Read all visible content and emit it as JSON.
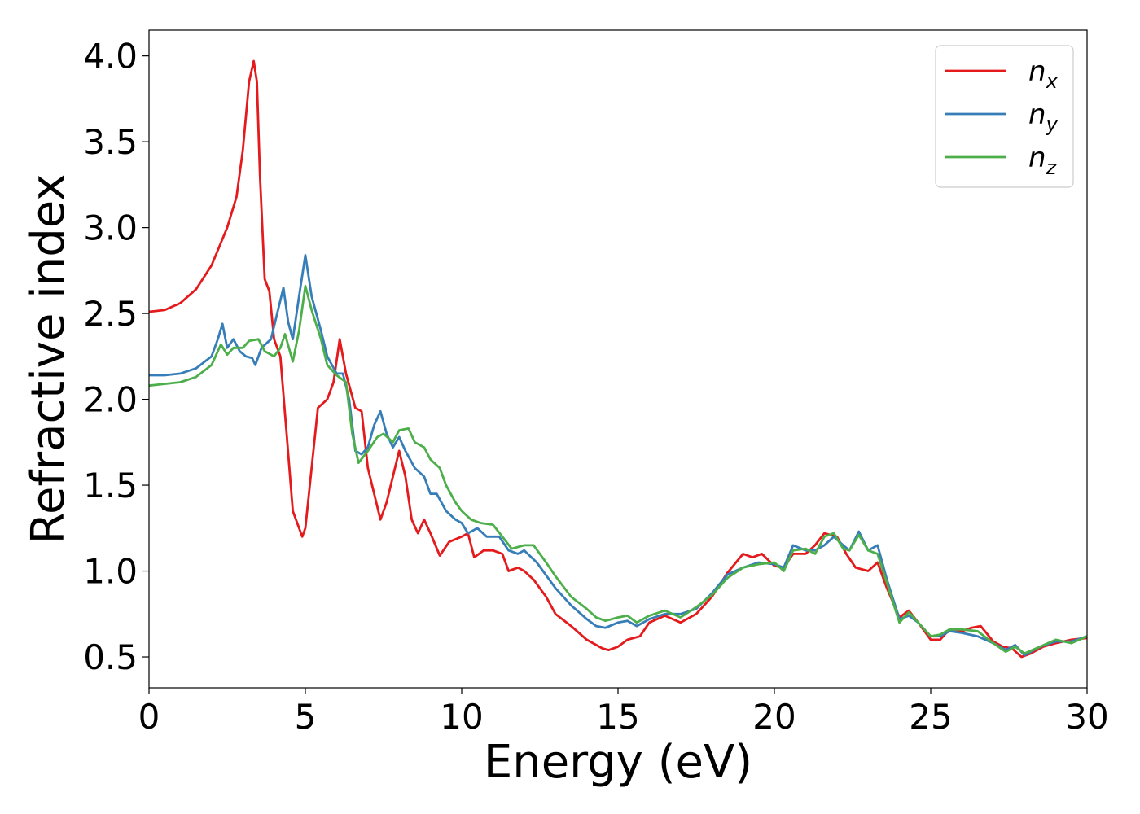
{
  "chart_data": {
    "type": "line",
    "title": "",
    "xlabel": "Energy (eV)",
    "ylabel": "Refractive index",
    "xlim": [
      0,
      30
    ],
    "ylim": [
      0.32,
      4.15
    ],
    "xticks": [
      0,
      5,
      10,
      15,
      20,
      25,
      30
    ],
    "xtick_labels": [
      "0",
      "5",
      "10",
      "15",
      "20",
      "25",
      "30"
    ],
    "yticks": [
      0.5,
      1.0,
      1.5,
      2.0,
      2.5,
      3.0,
      3.5,
      4.0
    ],
    "ytick_labels": [
      "0.5",
      "1.0",
      "1.5",
      "2.0",
      "2.5",
      "3.0",
      "3.5",
      "4.0"
    ],
    "grid": false,
    "legend_position": "top-right",
    "series": [
      {
        "name": "n",
        "subscript": "x",
        "color": "#e41a1c",
        "points": [
          [
            0,
            2.51
          ],
          [
            0.5,
            2.52
          ],
          [
            1.0,
            2.56
          ],
          [
            1.5,
            2.64
          ],
          [
            2.0,
            2.78
          ],
          [
            2.5,
            3.0
          ],
          [
            2.8,
            3.18
          ],
          [
            3.0,
            3.45
          ],
          [
            3.2,
            3.85
          ],
          [
            3.35,
            3.97
          ],
          [
            3.45,
            3.85
          ],
          [
            3.55,
            3.3
          ],
          [
            3.7,
            2.7
          ],
          [
            3.85,
            2.63
          ],
          [
            4.0,
            2.35
          ],
          [
            4.2,
            2.25
          ],
          [
            4.4,
            1.8
          ],
          [
            4.6,
            1.35
          ],
          [
            4.8,
            1.25
          ],
          [
            4.9,
            1.2
          ],
          [
            5.0,
            1.25
          ],
          [
            5.2,
            1.6
          ],
          [
            5.4,
            1.95
          ],
          [
            5.7,
            2.0
          ],
          [
            5.9,
            2.1
          ],
          [
            6.1,
            2.35
          ],
          [
            6.3,
            2.15
          ],
          [
            6.6,
            1.95
          ],
          [
            6.8,
            1.93
          ],
          [
            7.0,
            1.6
          ],
          [
            7.2,
            1.45
          ],
          [
            7.4,
            1.3
          ],
          [
            7.6,
            1.4
          ],
          [
            7.8,
            1.55
          ],
          [
            8.0,
            1.7
          ],
          [
            8.2,
            1.55
          ],
          [
            8.4,
            1.3
          ],
          [
            8.6,
            1.22
          ],
          [
            8.8,
            1.3
          ],
          [
            9.0,
            1.22
          ],
          [
            9.3,
            1.09
          ],
          [
            9.6,
            1.17
          ],
          [
            10.0,
            1.2
          ],
          [
            10.2,
            1.22
          ],
          [
            10.4,
            1.08
          ],
          [
            10.7,
            1.12
          ],
          [
            11.0,
            1.12
          ],
          [
            11.3,
            1.1
          ],
          [
            11.5,
            1.0
          ],
          [
            11.8,
            1.02
          ],
          [
            12.0,
            1.0
          ],
          [
            12.3,
            0.95
          ],
          [
            12.7,
            0.85
          ],
          [
            13.0,
            0.75
          ],
          [
            13.5,
            0.68
          ],
          [
            14.0,
            0.6
          ],
          [
            14.5,
            0.55
          ],
          [
            14.7,
            0.54
          ],
          [
            15.0,
            0.56
          ],
          [
            15.3,
            0.6
          ],
          [
            15.7,
            0.62
          ],
          [
            16.0,
            0.7
          ],
          [
            16.5,
            0.74
          ],
          [
            17.0,
            0.7
          ],
          [
            17.5,
            0.75
          ],
          [
            18.0,
            0.85
          ],
          [
            18.5,
            0.99
          ],
          [
            19.0,
            1.1
          ],
          [
            19.3,
            1.08
          ],
          [
            19.6,
            1.1
          ],
          [
            20.0,
            1.03
          ],
          [
            20.3,
            1.02
          ],
          [
            20.6,
            1.1
          ],
          [
            21.0,
            1.1
          ],
          [
            21.3,
            1.15
          ],
          [
            21.6,
            1.22
          ],
          [
            22.0,
            1.2
          ],
          [
            22.3,
            1.1
          ],
          [
            22.6,
            1.02
          ],
          [
            23.0,
            1.0
          ],
          [
            23.3,
            1.05
          ],
          [
            23.6,
            0.9
          ],
          [
            24.0,
            0.73
          ],
          [
            24.3,
            0.77
          ],
          [
            24.6,
            0.7
          ],
          [
            25.0,
            0.6
          ],
          [
            25.3,
            0.6
          ],
          [
            25.6,
            0.66
          ],
          [
            26.0,
            0.65
          ],
          [
            26.3,
            0.67
          ],
          [
            26.6,
            0.68
          ],
          [
            27.0,
            0.59
          ],
          [
            27.3,
            0.56
          ],
          [
            27.6,
            0.55
          ],
          [
            27.9,
            0.5
          ],
          [
            28.2,
            0.52
          ],
          [
            28.6,
            0.56
          ],
          [
            29.0,
            0.58
          ],
          [
            29.5,
            0.6
          ],
          [
            30.0,
            0.61
          ]
        ]
      },
      {
        "name": "n",
        "subscript": "y",
        "color": "#377eb8",
        "points": [
          [
            0,
            2.14
          ],
          [
            0.5,
            2.14
          ],
          [
            1.0,
            2.15
          ],
          [
            1.5,
            2.18
          ],
          [
            2.0,
            2.25
          ],
          [
            2.2,
            2.35
          ],
          [
            2.35,
            2.44
          ],
          [
            2.5,
            2.3
          ],
          [
            2.7,
            2.35
          ],
          [
            2.9,
            2.28
          ],
          [
            3.1,
            2.25
          ],
          [
            3.3,
            2.24
          ],
          [
            3.4,
            2.2
          ],
          [
            3.6,
            2.3
          ],
          [
            3.9,
            2.35
          ],
          [
            4.1,
            2.5
          ],
          [
            4.3,
            2.65
          ],
          [
            4.45,
            2.45
          ],
          [
            4.6,
            2.35
          ],
          [
            4.8,
            2.6
          ],
          [
            5.0,
            2.84
          ],
          [
            5.2,
            2.6
          ],
          [
            5.5,
            2.4
          ],
          [
            5.7,
            2.25
          ],
          [
            6.0,
            2.15
          ],
          [
            6.2,
            2.15
          ],
          [
            6.4,
            2.0
          ],
          [
            6.6,
            1.7
          ],
          [
            6.8,
            1.68
          ],
          [
            7.0,
            1.72
          ],
          [
            7.2,
            1.85
          ],
          [
            7.4,
            1.93
          ],
          [
            7.6,
            1.8
          ],
          [
            7.8,
            1.72
          ],
          [
            8.0,
            1.78
          ],
          [
            8.2,
            1.7
          ],
          [
            8.5,
            1.6
          ],
          [
            8.8,
            1.55
          ],
          [
            9.0,
            1.45
          ],
          [
            9.2,
            1.45
          ],
          [
            9.5,
            1.35
          ],
          [
            9.8,
            1.3
          ],
          [
            10.0,
            1.28
          ],
          [
            10.2,
            1.22
          ],
          [
            10.5,
            1.25
          ],
          [
            10.8,
            1.2
          ],
          [
            11.2,
            1.2
          ],
          [
            11.5,
            1.12
          ],
          [
            11.8,
            1.1
          ],
          [
            12.0,
            1.12
          ],
          [
            12.4,
            1.05
          ],
          [
            13.0,
            0.9
          ],
          [
            13.5,
            0.8
          ],
          [
            14.0,
            0.72
          ],
          [
            14.3,
            0.68
          ],
          [
            14.6,
            0.67
          ],
          [
            15.0,
            0.7
          ],
          [
            15.3,
            0.71
          ],
          [
            15.6,
            0.68
          ],
          [
            16.0,
            0.72
          ],
          [
            16.5,
            0.75
          ],
          [
            17.0,
            0.75
          ],
          [
            17.5,
            0.78
          ],
          [
            18.0,
            0.87
          ],
          [
            18.5,
            0.98
          ],
          [
            19.0,
            1.02
          ],
          [
            19.5,
            1.05
          ],
          [
            20.0,
            1.04
          ],
          [
            20.3,
            1.02
          ],
          [
            20.6,
            1.15
          ],
          [
            21.0,
            1.12
          ],
          [
            21.3,
            1.12
          ],
          [
            21.6,
            1.15
          ],
          [
            21.9,
            1.2
          ],
          [
            22.2,
            1.15
          ],
          [
            22.4,
            1.12
          ],
          [
            22.7,
            1.23
          ],
          [
            23.0,
            1.12
          ],
          [
            23.3,
            1.15
          ],
          [
            23.6,
            0.95
          ],
          [
            24.0,
            0.72
          ],
          [
            24.3,
            0.74
          ],
          [
            24.6,
            0.7
          ],
          [
            25.0,
            0.62
          ],
          [
            25.3,
            0.62
          ],
          [
            25.6,
            0.65
          ],
          [
            26.0,
            0.64
          ],
          [
            26.5,
            0.62
          ],
          [
            27.0,
            0.58
          ],
          [
            27.4,
            0.54
          ],
          [
            27.7,
            0.57
          ],
          [
            28.0,
            0.51
          ],
          [
            28.5,
            0.56
          ],
          [
            29.0,
            0.59
          ],
          [
            29.5,
            0.59
          ],
          [
            30.0,
            0.62
          ]
        ]
      },
      {
        "name": "n",
        "subscript": "z",
        "color": "#4daf4a",
        "points": [
          [
            0,
            2.08
          ],
          [
            0.5,
            2.09
          ],
          [
            1.0,
            2.1
          ],
          [
            1.5,
            2.13
          ],
          [
            2.0,
            2.2
          ],
          [
            2.3,
            2.32
          ],
          [
            2.5,
            2.26
          ],
          [
            2.7,
            2.3
          ],
          [
            3.0,
            2.3
          ],
          [
            3.2,
            2.34
          ],
          [
            3.5,
            2.35
          ],
          [
            3.7,
            2.28
          ],
          [
            4.0,
            2.25
          ],
          [
            4.2,
            2.3
          ],
          [
            4.35,
            2.38
          ],
          [
            4.6,
            2.22
          ],
          [
            4.8,
            2.4
          ],
          [
            5.0,
            2.66
          ],
          [
            5.2,
            2.52
          ],
          [
            5.5,
            2.35
          ],
          [
            5.7,
            2.2
          ],
          [
            6.0,
            2.14
          ],
          [
            6.3,
            2.1
          ],
          [
            6.5,
            1.8
          ],
          [
            6.7,
            1.63
          ],
          [
            7.0,
            1.7
          ],
          [
            7.3,
            1.78
          ],
          [
            7.5,
            1.8
          ],
          [
            7.8,
            1.75
          ],
          [
            8.0,
            1.82
          ],
          [
            8.3,
            1.83
          ],
          [
            8.5,
            1.75
          ],
          [
            8.8,
            1.72
          ],
          [
            9.0,
            1.65
          ],
          [
            9.3,
            1.6
          ],
          [
            9.5,
            1.5
          ],
          [
            9.8,
            1.4
          ],
          [
            10.0,
            1.35
          ],
          [
            10.3,
            1.3
          ],
          [
            10.6,
            1.28
          ],
          [
            11.0,
            1.27
          ],
          [
            11.3,
            1.2
          ],
          [
            11.6,
            1.13
          ],
          [
            12.0,
            1.15
          ],
          [
            12.3,
            1.15
          ],
          [
            12.7,
            1.05
          ],
          [
            13.0,
            0.97
          ],
          [
            13.5,
            0.85
          ],
          [
            14.0,
            0.78
          ],
          [
            14.3,
            0.73
          ],
          [
            14.6,
            0.71
          ],
          [
            15.0,
            0.73
          ],
          [
            15.3,
            0.74
          ],
          [
            15.6,
            0.7
          ],
          [
            16.0,
            0.74
          ],
          [
            16.5,
            0.77
          ],
          [
            17.0,
            0.73
          ],
          [
            17.5,
            0.79
          ],
          [
            18.0,
            0.86
          ],
          [
            18.5,
            0.96
          ],
          [
            19.0,
            1.02
          ],
          [
            19.5,
            1.04
          ],
          [
            20.0,
            1.05
          ],
          [
            20.3,
            1.0
          ],
          [
            20.6,
            1.12
          ],
          [
            21.0,
            1.13
          ],
          [
            21.3,
            1.1
          ],
          [
            21.6,
            1.2
          ],
          [
            21.9,
            1.22
          ],
          [
            22.2,
            1.13
          ],
          [
            22.4,
            1.12
          ],
          [
            22.7,
            1.21
          ],
          [
            23.0,
            1.12
          ],
          [
            23.3,
            1.1
          ],
          [
            23.6,
            0.93
          ],
          [
            24.0,
            0.7
          ],
          [
            24.3,
            0.76
          ],
          [
            24.6,
            0.7
          ],
          [
            25.0,
            0.62
          ],
          [
            25.3,
            0.63
          ],
          [
            25.6,
            0.66
          ],
          [
            26.0,
            0.66
          ],
          [
            26.5,
            0.65
          ],
          [
            27.0,
            0.58
          ],
          [
            27.4,
            0.53
          ],
          [
            27.7,
            0.56
          ],
          [
            28.0,
            0.52
          ],
          [
            28.5,
            0.56
          ],
          [
            29.0,
            0.6
          ],
          [
            29.5,
            0.58
          ],
          [
            30.0,
            0.62
          ]
        ]
      }
    ]
  }
}
